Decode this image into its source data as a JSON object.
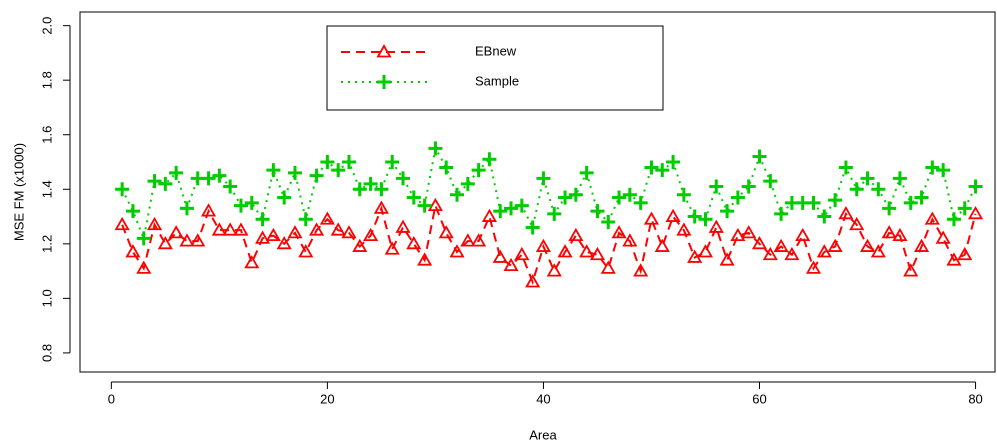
{
  "chart_data": {
    "type": "line",
    "xlabel": "Area",
    "ylabel": "MSE FM (x1000)",
    "x": [
      1,
      2,
      3,
      4,
      5,
      6,
      7,
      8,
      9,
      10,
      11,
      12,
      13,
      14,
      15,
      16,
      17,
      18,
      19,
      20,
      21,
      22,
      23,
      24,
      25,
      26,
      27,
      28,
      29,
      30,
      31,
      32,
      33,
      34,
      35,
      36,
      37,
      38,
      39,
      40,
      41,
      42,
      43,
      44,
      45,
      46,
      47,
      48,
      49,
      50,
      51,
      52,
      53,
      54,
      55,
      56,
      57,
      58,
      59,
      60,
      61,
      62,
      63,
      64,
      65,
      66,
      67,
      68,
      69,
      70,
      71,
      72,
      73,
      74,
      75,
      76,
      77,
      78,
      79,
      80
    ],
    "series": [
      {
        "name": "EBnew",
        "color": "#ff0000",
        "linestyle": "dashed",
        "marker": "triangle",
        "values": [
          1.27,
          1.17,
          1.11,
          1.27,
          1.2,
          1.24,
          1.21,
          1.21,
          1.32,
          1.25,
          1.25,
          1.25,
          1.13,
          1.22,
          1.23,
          1.2,
          1.24,
          1.17,
          1.25,
          1.29,
          1.25,
          1.24,
          1.19,
          1.23,
          1.33,
          1.18,
          1.26,
          1.2,
          1.14,
          1.34,
          1.24,
          1.17,
          1.21,
          1.21,
          1.3,
          1.15,
          1.12,
          1.16,
          1.06,
          1.19,
          1.1,
          1.17,
          1.23,
          1.17,
          1.16,
          1.11,
          1.24,
          1.21,
          1.1,
          1.29,
          1.19,
          1.3,
          1.25,
          1.15,
          1.17,
          1.26,
          1.14,
          1.23,
          1.24,
          1.2,
          1.16,
          1.19,
          1.16,
          1.23,
          1.11,
          1.17,
          1.19,
          1.31,
          1.27,
          1.19,
          1.17,
          1.24,
          1.23,
          1.1,
          1.19,
          1.29,
          1.22,
          1.14,
          1.16,
          1.31
        ]
      },
      {
        "name": "Sample",
        "color": "#00cc00",
        "linestyle": "dotted",
        "marker": "plus",
        "values": [
          1.4,
          1.32,
          1.22,
          1.43,
          1.42,
          1.46,
          1.33,
          1.44,
          1.44,
          1.45,
          1.41,
          1.34,
          1.35,
          1.29,
          1.47,
          1.37,
          1.46,
          1.29,
          1.45,
          1.5,
          1.47,
          1.5,
          1.4,
          1.42,
          1.4,
          1.5,
          1.44,
          1.37,
          1.34,
          1.55,
          1.48,
          1.38,
          1.42,
          1.47,
          1.51,
          1.32,
          1.33,
          1.34,
          1.26,
          1.44,
          1.31,
          1.37,
          1.38,
          1.46,
          1.32,
          1.28,
          1.37,
          1.38,
          1.35,
          1.48,
          1.47,
          1.5,
          1.38,
          1.3,
          1.29,
          1.41,
          1.32,
          1.37,
          1.41,
          1.52,
          1.43,
          1.31,
          1.35,
          1.35,
          1.35,
          1.3,
          1.36,
          1.48,
          1.4,
          1.44,
          1.4,
          1.33,
          1.44,
          1.35,
          1.37,
          1.48,
          1.47,
          1.29,
          1.33,
          1.41
        ]
      }
    ],
    "xlim": [
      -2.9,
      81.8
    ],
    "ylim": [
      0.73,
      2.05
    ],
    "xticks": [
      0,
      20,
      40,
      60,
      80
    ],
    "yticks": [
      0.8,
      {
        "value": 1,
        "label": "1.0"
      },
      1.2,
      1.4,
      1.6,
      1.8,
      {
        "value": 2,
        "label": "2.0"
      }
    ],
    "legend": "top-center"
  }
}
